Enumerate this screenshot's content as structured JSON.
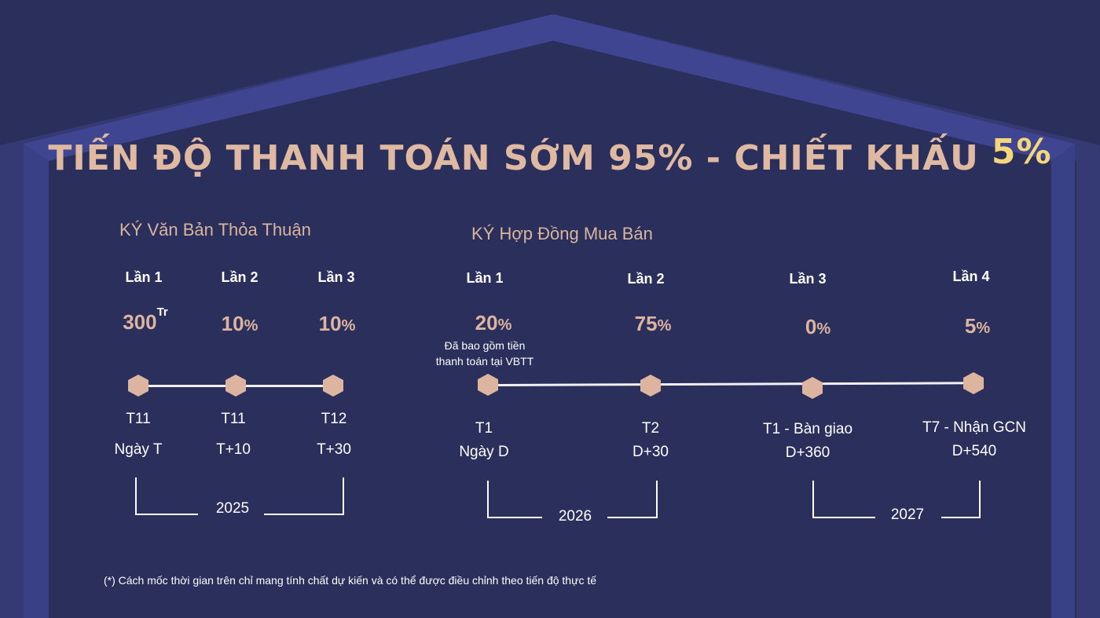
{
  "title": {
    "text": "TIẾN ĐỘ THANH TOÁN SỚM 95% - CHIẾT KHẤU",
    "discount": "5%"
  },
  "colors": {
    "background": "#2b2f5c",
    "frame": "#3d4286",
    "accent": "#e0b9a2",
    "highlight": "#f3d77a",
    "node": "#dcb49f"
  },
  "vbtt": {
    "heading": "KÝ Văn Bản Thỏa Thuận",
    "year": "2025",
    "steps": [
      {
        "label": "Lần 1",
        "value": "300",
        "unit": "Tr",
        "month": "T11",
        "day": "Ngày T"
      },
      {
        "label": "Lần 2",
        "value": "10",
        "unit": "%",
        "month": "T11",
        "day": "T+10"
      },
      {
        "label": "Lần 3",
        "value": "10",
        "unit": "%",
        "month": "T12",
        "day": "T+30"
      }
    ]
  },
  "hdmb": {
    "heading": "KÝ Hợp Đồng Mua Bán",
    "note_line1": "Đã bao gồm tiền",
    "note_line2": "thanh toán tại VBTT",
    "years": [
      "2026",
      "2027"
    ],
    "steps": [
      {
        "label": "Lần 1",
        "value": "20",
        "unit": "%",
        "month": "T1",
        "day": "Ngày D"
      },
      {
        "label": "Lần 2",
        "value": "75",
        "unit": "%",
        "month": "T2",
        "day": "D+30"
      },
      {
        "label": "Lần 3",
        "value": "0",
        "unit": "%",
        "month": "T1 - Bàn giao",
        "day": "D+360"
      },
      {
        "label": "Lần 4",
        "value": "5",
        "unit": "%",
        "month": "T7 - Nhận GCN",
        "day": "D+540"
      }
    ]
  },
  "footnote": "(*) Cách mốc thời gian trên chỉ mang tính chất dự kiến và có thể được điều chỉnh theo tiến độ thực tế"
}
